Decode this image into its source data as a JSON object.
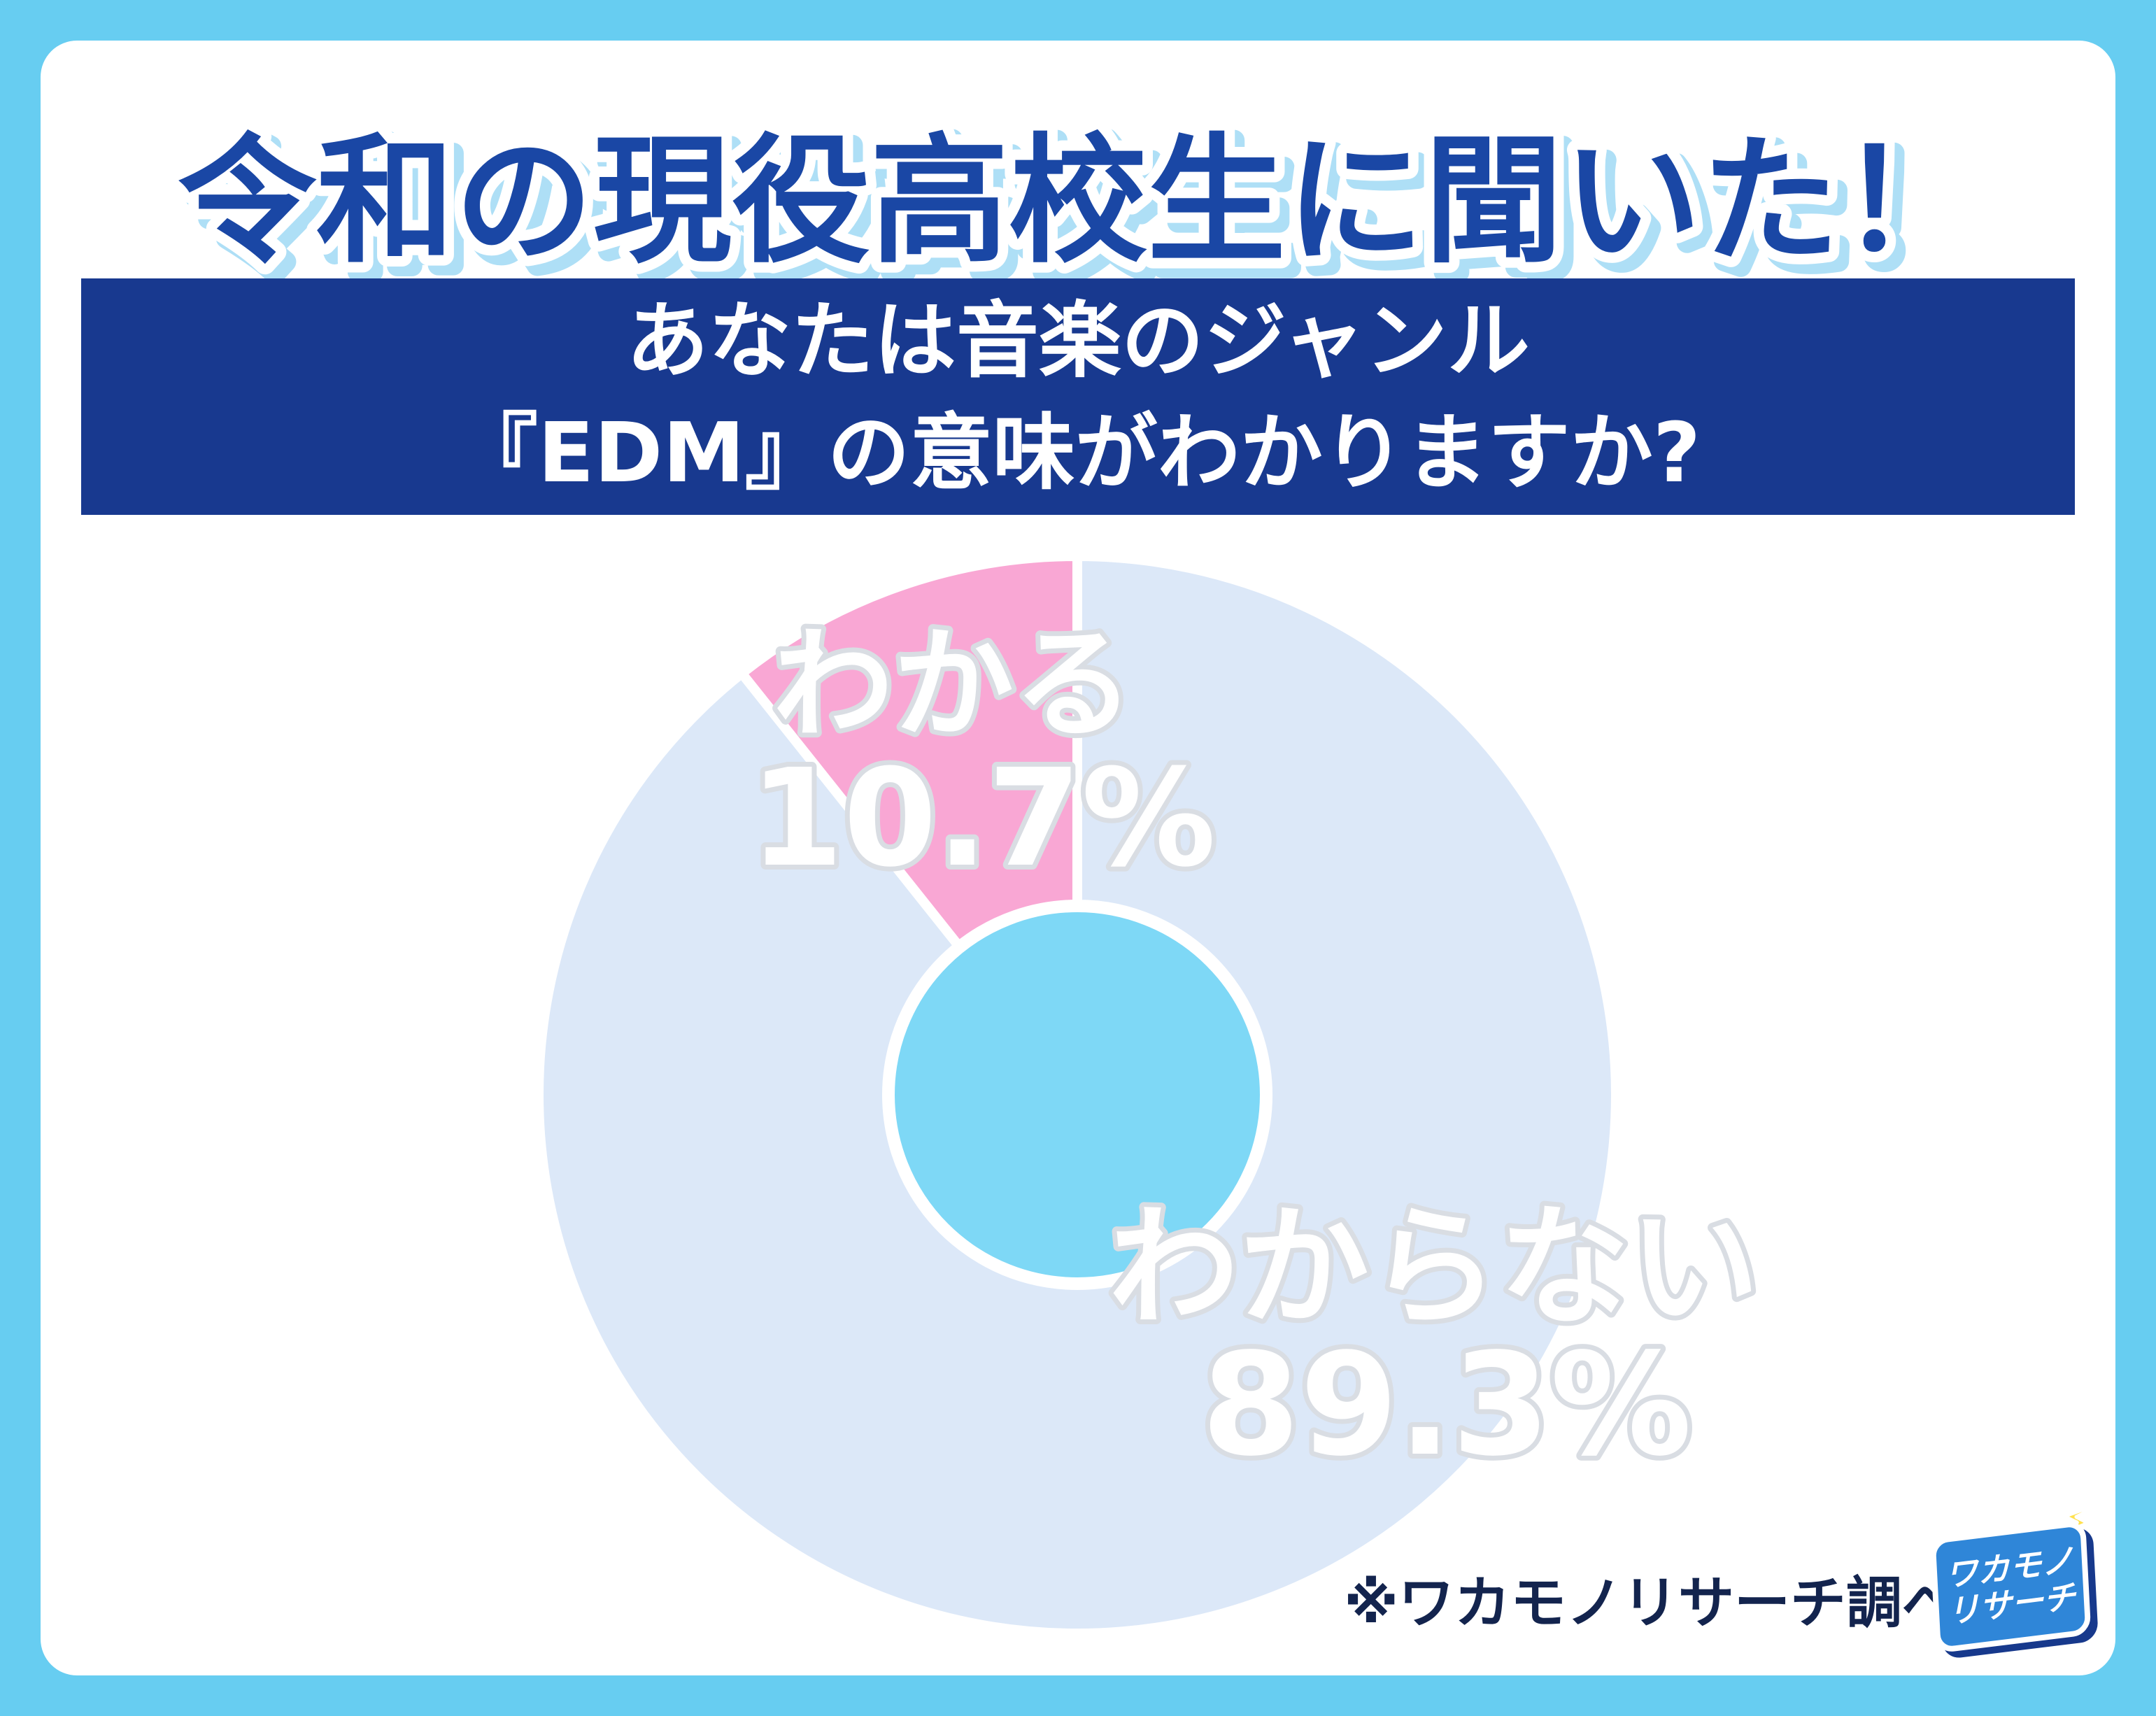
{
  "header": {
    "title": "令和の現役高校生に聞いた！"
  },
  "banner": {
    "line1": "あなたは音楽のジャンル",
    "line2": "『EDM』の意味がわかりますか?"
  },
  "chart_data": {
    "type": "pie",
    "donut": true,
    "title": "あなたは音楽のジャンル『EDM』の意味がわかりますか?",
    "direction": "clockwise",
    "start_angle_deg": 0,
    "slices": [
      {
        "id": "wakaranai",
        "label": "わからない",
        "value": 89.3,
        "color": "#DCE8F8"
      },
      {
        "id": "wakaru",
        "label": "わかる",
        "value": 10.7,
        "color": "#F9A7D4"
      }
    ],
    "slice_border_color": "#FFFFFF",
    "hole_color": "#7ED8F6",
    "labels_on_chart": true,
    "legend": "none"
  },
  "footer": {
    "note": "※ワカモノリサーチ調べ"
  },
  "logo": {
    "line1": "ワカモノ",
    "line2": "リサーチ",
    "bolt_icon": "⚡"
  },
  "colors": {
    "bg": "#67CDF1",
    "card": "#FFFFFF",
    "banner": "#18398F",
    "banner_text": "#FFFFFF",
    "title": "#1A47A5",
    "title_shadow": "#AEDFF6",
    "label_stroke": "#D9DDE3",
    "footnote": "#13244E",
    "logo_blue": "#2F86D8",
    "logo_shadow": "#17398C",
    "logo_bolt": "#FFE14D"
  }
}
